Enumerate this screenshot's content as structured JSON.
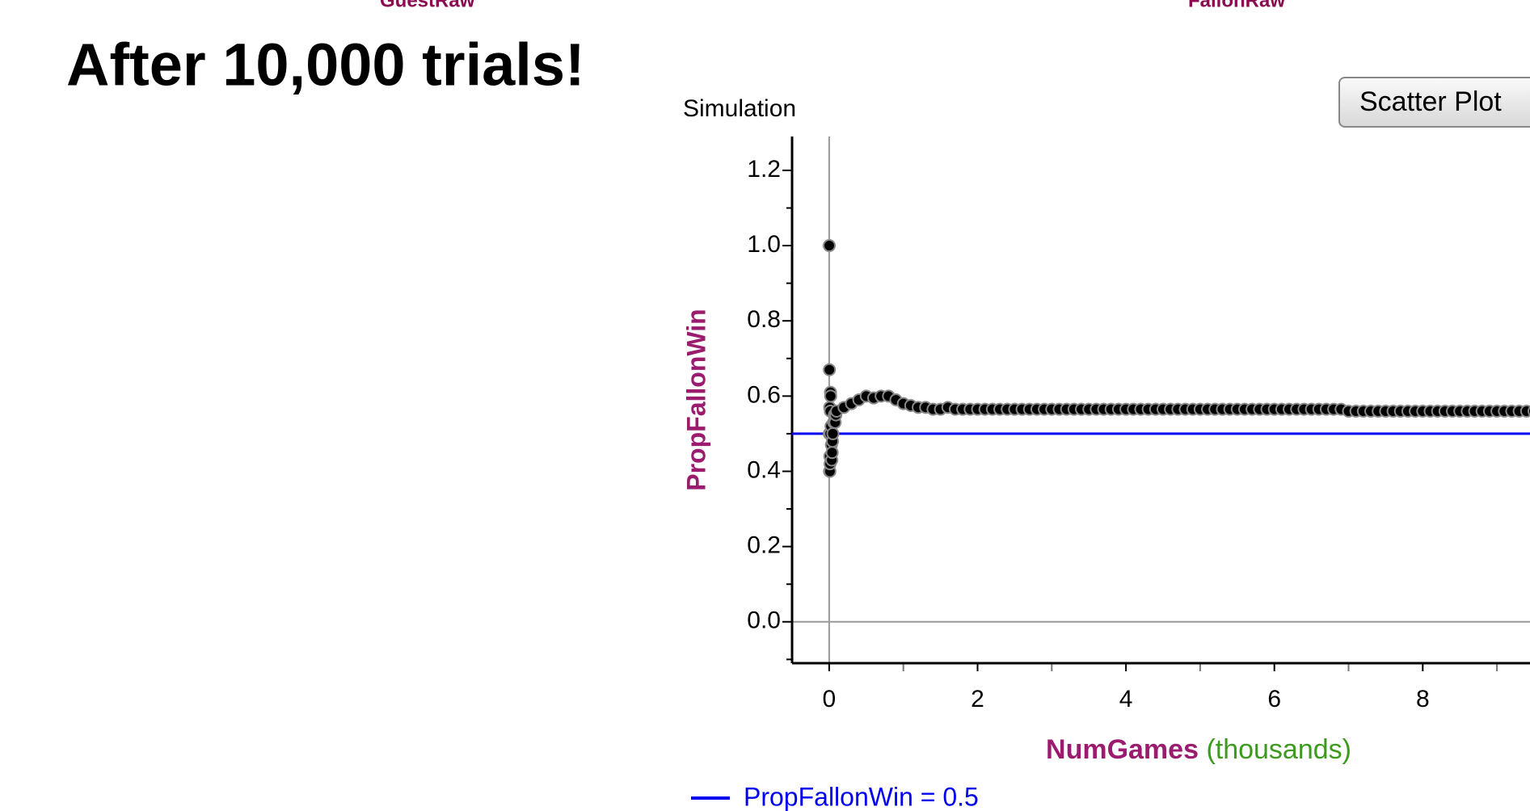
{
  "header": {
    "cut_labels": [
      "GuestRaw",
      "FallonRaw"
    ],
    "title": "After 10,000 trials!"
  },
  "button": {
    "label": "Scatter Plot"
  },
  "chart_data": {
    "type": "scatter",
    "title": "Simulation",
    "x_label": "NumGames",
    "x_label_unit": "(thousands)",
    "y_label": "PropFallonWin",
    "color": "#000000",
    "x": [
      0.001,
      0.002,
      0.003,
      0.004,
      0.005,
      0.006,
      0.007,
      0.008,
      0.009,
      0.01,
      0.012,
      0.014,
      0.016,
      0.018,
      0.02,
      0.025,
      0.03,
      0.035,
      0.04,
      0.045,
      0.05,
      0.06,
      0.07,
      0.08,
      0.09,
      0.1,
      0.2,
      0.3,
      0.4,
      0.5,
      0.6,
      0.7,
      0.8,
      0.9,
      1.0,
      1.1,
      1.2,
      1.3,
      1.4,
      1.5,
      1.6,
      1.7,
      1.8,
      1.9,
      2.0,
      2.1,
      2.2,
      2.3,
      2.4,
      2.5,
      2.6,
      2.7,
      2.8,
      2.9,
      3.0,
      3.1,
      3.2,
      3.3,
      3.4,
      3.5,
      3.6,
      3.7,
      3.8,
      3.9,
      4.0,
      4.1,
      4.2,
      4.3,
      4.4,
      4.5,
      4.6,
      4.7,
      4.8,
      4.9,
      5.0,
      5.1,
      5.2,
      5.3,
      5.4,
      5.5,
      5.6,
      5.7,
      5.8,
      5.9,
      6.0,
      6.1,
      6.2,
      6.3,
      6.4,
      6.5,
      6.6,
      6.7,
      6.8,
      6.9,
      7.0,
      7.1,
      7.2,
      7.3,
      7.4,
      7.5,
      7.6,
      7.7,
      7.8,
      7.9,
      8.0,
      8.1,
      8.2,
      8.3,
      8.4,
      8.5,
      8.6,
      8.7,
      8.8,
      8.9,
      9.0,
      9.1,
      9.2,
      9.3,
      9.4,
      9.5,
      9.6,
      9.7,
      9.8,
      9.9,
      10.0
    ],
    "values": [
      1.0,
      0.5,
      0.67,
      0.5,
      0.4,
      0.5,
      0.57,
      0.5,
      0.44,
      0.4,
      0.42,
      0.5,
      0.56,
      0.61,
      0.6,
      0.52,
      0.47,
      0.43,
      0.45,
      0.48,
      0.5,
      0.53,
      0.55,
      0.53,
      0.55,
      0.56,
      0.57,
      0.58,
      0.59,
      0.6,
      0.595,
      0.6,
      0.6,
      0.59,
      0.58,
      0.575,
      0.57,
      0.57,
      0.565,
      0.565,
      0.57,
      0.565,
      0.565,
      0.565,
      0.565,
      0.565,
      0.565,
      0.565,
      0.565,
      0.565,
      0.565,
      0.565,
      0.565,
      0.565,
      0.565,
      0.565,
      0.565,
      0.565,
      0.565,
      0.565,
      0.565,
      0.565,
      0.565,
      0.565,
      0.565,
      0.565,
      0.565,
      0.565,
      0.565,
      0.565,
      0.565,
      0.565,
      0.565,
      0.565,
      0.565,
      0.565,
      0.565,
      0.565,
      0.565,
      0.565,
      0.565,
      0.565,
      0.565,
      0.565,
      0.565,
      0.565,
      0.565,
      0.565,
      0.565,
      0.565,
      0.565,
      0.565,
      0.565,
      0.565,
      0.56,
      0.56,
      0.56,
      0.56,
      0.56,
      0.56,
      0.56,
      0.56,
      0.56,
      0.56,
      0.56,
      0.56,
      0.56,
      0.56,
      0.56,
      0.56,
      0.56,
      0.56,
      0.56,
      0.56,
      0.56,
      0.56,
      0.56,
      0.56,
      0.56,
      0.56,
      0.56,
      0.56,
      0.56,
      0.56,
      0.56
    ],
    "xlim": [
      -0.5,
      10.5
    ],
    "ylim": [
      -0.11,
      1.29
    ],
    "xticks": [
      0,
      2,
      4,
      6,
      8
    ],
    "xminor_ticks": [
      1,
      3,
      5,
      7,
      9
    ],
    "yticks": [
      {
        "value": 0,
        "label": "0.0"
      },
      {
        "value": 0.2,
        "label": "0.2"
      },
      {
        "value": 0.4,
        "label": "0.4"
      },
      {
        "value": 0.6,
        "label": "0.6"
      },
      {
        "value": 0.8,
        "label": "0.8"
      },
      {
        "value": 1.0,
        "label": "1.0"
      },
      {
        "value": 1.2,
        "label": "1.2"
      }
    ],
    "yminor_ticks": [
      -0.1,
      0.1,
      0.3,
      0.5,
      0.7,
      0.9,
      1.1
    ],
    "reference_line": {
      "value": 0.5,
      "label": "PropFallonWin = 0.5",
      "color": "#0000ee"
    }
  }
}
